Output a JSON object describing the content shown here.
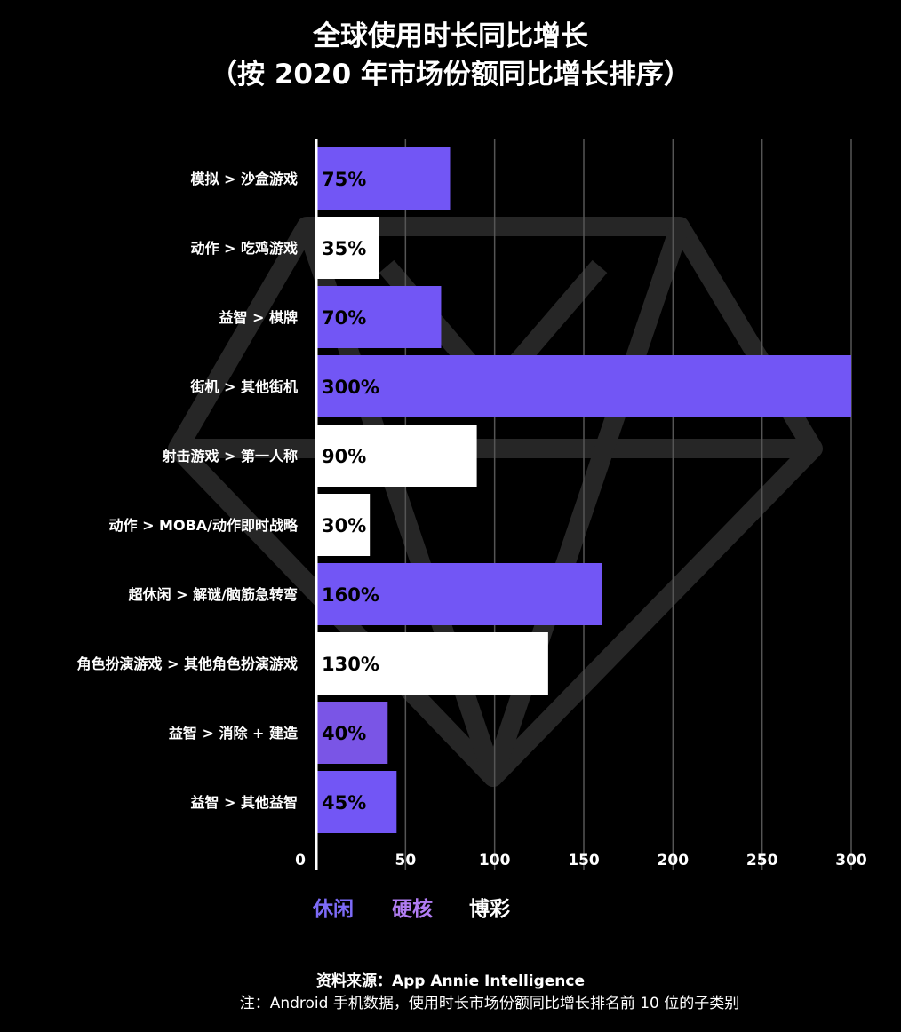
{
  "title_line1": "全球使用时长同比增长",
  "title_line2": "（按 2020 年市场份额同比增长排序）",
  "colors": {
    "casual": "#7256f5",
    "hardcore": "#7a55e6",
    "casino": "#ffffff",
    "legend_casual": "#7d6bf7",
    "legend_hardcore": "#b07cf2",
    "legend_casino": "#ffffff"
  },
  "chart_data": {
    "type": "bar",
    "orientation": "horizontal",
    "categories": [
      "模拟 > 沙盒游戏",
      "动作 > 吃鸡游戏",
      "益智 > 棋牌",
      "街机 > 其他街机",
      "射击游戏 > 第一人称",
      "动作 > MOBA/动作即时战略",
      "超休闲 > 解谜/脑筋急转弯",
      "角色扮演游戏 > 其他角色扮演游戏",
      "益智 > 消除 + 建造",
      "益智 > 其他益智"
    ],
    "values": [
      75,
      35,
      70,
      300,
      90,
      30,
      160,
      130,
      40,
      45
    ],
    "value_labels": [
      "75%",
      "35%",
      "70%",
      "300%",
      "90%",
      "30%",
      "160%",
      "130%",
      "40%",
      "45%"
    ],
    "bar_groups": [
      "casual",
      "casino",
      "casual",
      "casual",
      "casino",
      "casino",
      "casual",
      "casino",
      "hardcore",
      "casual"
    ],
    "x_ticks": [
      "0",
      "50",
      "100",
      "150",
      "200",
      "250",
      "300"
    ],
    "xlim": [
      0,
      300
    ],
    "grid": true,
    "legend": [
      {
        "key": "casual",
        "label": "休闲"
      },
      {
        "key": "hardcore",
        "label": "硬核"
      },
      {
        "key": "casino",
        "label": "博彩"
      }
    ],
    "legend_position": "bottom"
  },
  "source_text": "资料来源：App Annie Intelligence",
  "note_text": "注：Android 手机数据，使用时长市场份额同比增长排名前 10 位的子类别"
}
